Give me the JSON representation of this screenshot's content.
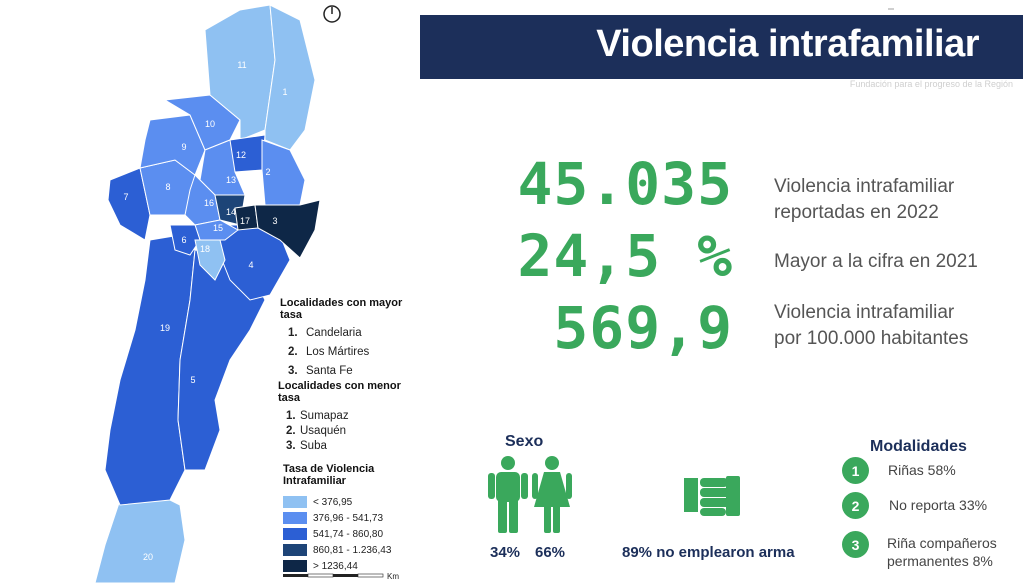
{
  "header": {
    "title": "Violencia intrafamiliar",
    "subtitle": "Fundación para el progreso de la Región"
  },
  "stats": [
    {
      "value": "45.035",
      "desc1": "Violencia intrafamiliar",
      "desc2": "reportadas en 2022"
    },
    {
      "value": "24,5 %",
      "desc1": "Mayor a la cifra en 2021",
      "desc2": ""
    },
    {
      "value": "569,9",
      "desc1": "Violencia intrafamiliar",
      "desc2": "por 100.000 habitantes"
    }
  ],
  "map": {
    "localities": [
      "1",
      "2",
      "3",
      "4",
      "5",
      "6",
      "7",
      "8",
      "9",
      "10",
      "11",
      "12",
      "13",
      "14",
      "15",
      "16",
      "17",
      "18",
      "19",
      "20"
    ],
    "compass_icon": "compass-icon"
  },
  "legend": {
    "mayor_title": "Localidades con mayor tasa",
    "mayor": [
      {
        "num": "1.",
        "name": "Candelaria"
      },
      {
        "num": "2.",
        "name": "Los Mártires"
      },
      {
        "num": "3.",
        "name": "Santa Fe"
      }
    ],
    "menor_title": "Localidades con menor tasa",
    "menor": [
      {
        "num": "1.",
        "name": "Sumapaz"
      },
      {
        "num": "2.",
        "name": "Usaquén"
      },
      {
        "num": "3.",
        "name": "Suba"
      }
    ],
    "scale_title": "Tasa de Violencia Intrafamiliar",
    "scale": [
      {
        "label": "< 376,95",
        "color": "#8fc1f2"
      },
      {
        "label": "376,96 - 541,73",
        "color": "#5b8ef0"
      },
      {
        "label": "541,74 - 860,80",
        "color": "#2c5fd4"
      },
      {
        "label": "860,81 - 1.236,43",
        "color": "#1d4477"
      },
      {
        "label": "> 1236,44",
        "color": "#0e2747"
      }
    ],
    "km_label": "Km"
  },
  "sexo": {
    "title": "Sexo",
    "male_pct": "34%",
    "female_pct": "66%",
    "icons": [
      "male-figure-icon",
      "female-figure-icon"
    ]
  },
  "arma": {
    "text": "89% no emplearon arma",
    "icon": "fist-icon"
  },
  "modalidades": {
    "title": "Modalidades",
    "items": [
      {
        "num": "1",
        "line1": "Riñas 58%",
        "line2": ""
      },
      {
        "num": "2",
        "line1": "No reporta 33%",
        "line2": ""
      },
      {
        "num": "3",
        "line1": "Riña compañeros",
        "line2": "permanentes 8%"
      }
    ]
  },
  "colors": {
    "banner": "#1c2f5a",
    "green": "#3aa85c",
    "navy_text": "#1c2f5a"
  }
}
